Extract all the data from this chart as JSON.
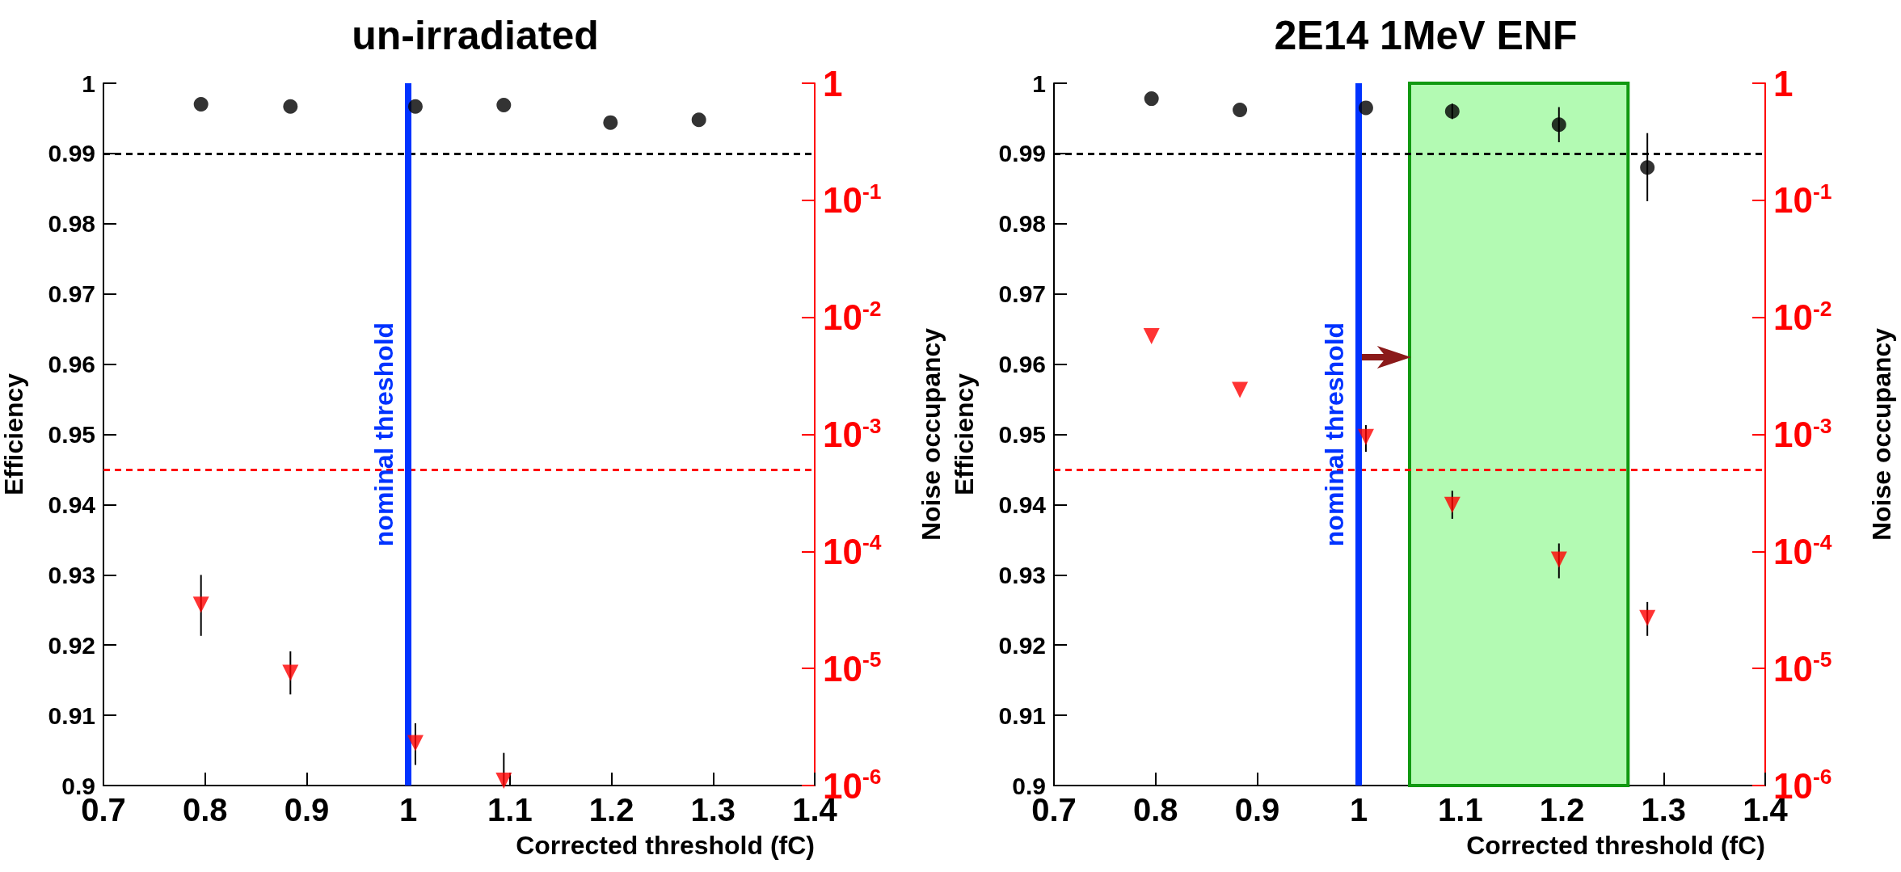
{
  "chart_data": [
    {
      "type": "scatter",
      "title": "un-irradiated",
      "xlabel": "Corrected threshold (fC)",
      "ylabel": "Efficiency",
      "y2label": "Noise occupancy",
      "xlim": [
        0.7,
        1.4
      ],
      "xticks": [
        0.7,
        0.8,
        0.9,
        1,
        1.1,
        1.2,
        1.3,
        1.4
      ],
      "ylim": [
        0.9,
        1
      ],
      "yticks": [
        0.9,
        0.91,
        0.92,
        0.93,
        0.94,
        0.95,
        0.96,
        0.97,
        0.98,
        0.99,
        1
      ],
      "y2lim": [
        1e-06,
        1
      ],
      "y2ticks": [
        {
          "value": 1e-06,
          "label": "10$^{-6}$"
        },
        {
          "value": 1e-05,
          "label": "10$^{-5}$"
        },
        {
          "value": 0.0001,
          "label": "10$^{-4}$"
        },
        {
          "value": 0.001,
          "label": "10$^{-3}$"
        },
        {
          "value": 0.01,
          "label": "10$^{-2}$"
        },
        {
          "value": 0.1,
          "label": "10$^{-1}$"
        },
        1
      ],
      "log": "y2",
      "grid": false,
      "series": [
        {
          "color": "#000000",
          "marker": "circle",
          "x": [
            0.796,
            0.884,
            1.007,
            1.094,
            1.199,
            1.286
          ],
          "values": [
            0.997,
            0.9967,
            0.9967,
            0.9969,
            0.9944,
            0.9948
          ]
        },
        {
          "color": "#ff0000",
          "marker": "triangle",
          "axis": "y2",
          "x": [
            0.796,
            0.884,
            1.007,
            1.094
          ],
          "values": [
            3.5e-05,
            9.2e-06,
            2.3e-06,
            1.1e-06
          ],
          "errors": [
            [
              1.9e-05,
              6.3e-05
            ],
            [
              6e-06,
              1.4e-05
            ],
            [
              1.5e-06,
              3.4e-06
            ],
            [
              1e-06,
              1.9e-06
            ]
          ]
        }
      ],
      "ref_lines": [
        {
          "axis": "y",
          "value": 0.99,
          "color": "#000000",
          "line_style": "dashed"
        },
        {
          "axis": "y2",
          "value": 0.0005,
          "color": "#ff0000",
          "line_style": "dashed"
        },
        {
          "axis": "x",
          "value": 1,
          "label": "nominal threshold",
          "color": "#0033ff",
          "line_style": "solid"
        }
      ]
    },
    {
      "type": "scatter",
      "title": "2E14 1MeV ENF",
      "xlabel": "Corrected threshold (fC)",
      "ylabel": "Efficiency",
      "y2label": "Noise occupancy",
      "xlim": [
        0.7,
        1.4
      ],
      "xticks": [
        0.7,
        0.8,
        0.9,
        1,
        1.1,
        1.2,
        1.3,
        1.4
      ],
      "ylim": [
        0.9,
        1
      ],
      "yticks": [
        0.9,
        0.91,
        0.92,
        0.93,
        0.94,
        0.95,
        0.96,
        0.97,
        0.98,
        0.99,
        1
      ],
      "y2lim": [
        1e-06,
        1
      ],
      "y2ticks": [
        {
          "value": 1e-06,
          "label": "10$^{-6}$"
        },
        {
          "value": 1e-05,
          "label": "10$^{-5}$"
        },
        {
          "value": 0.0001,
          "label": "10$^{-4}$"
        },
        {
          "value": 0.001,
          "label": "10$^{-3}$"
        },
        {
          "value": 0.01,
          "label": "10$^{-2}$"
        },
        {
          "value": 0.1,
          "label": "10$^{-1}$"
        },
        1
      ],
      "log": "y2",
      "grid": false,
      "series": [
        {
          "color": "#000000",
          "marker": "circle",
          "x": [
            0.796,
            0.883,
            1.007,
            1.092,
            1.197,
            1.284
          ],
          "values": [
            0.9978,
            0.9962,
            0.9965,
            0.996,
            0.9941,
            0.988
          ],
          "errors": [
            null,
            null,
            null,
            [
              0.9949,
              0.9971
            ],
            [
              0.9916,
              0.9966
            ],
            [
              0.9832,
              0.9929
            ]
          ]
        },
        {
          "color": "#ff0000",
          "marker": "triangle",
          "axis": "y2",
          "x": [
            0.796,
            0.883,
            1.007,
            1.092,
            1.197,
            1.284
          ],
          "values": [
            0.0069,
            0.0024,
            0.00095,
            0.00025,
            8.5e-05,
            2.7e-05
          ],
          "errors": [
            null,
            null,
            [
              0.00071,
              0.0012
            ],
            [
              0.00019,
              0.00033
            ],
            [
              5.9e-05,
              0.000117
            ],
            [
              1.9e-05,
              3.7e-05
            ]
          ]
        }
      ],
      "ref_lines": [
        {
          "axis": "y",
          "value": 0.99,
          "color": "#000000",
          "line_style": "dashed"
        },
        {
          "axis": "y2",
          "value": 0.0005,
          "color": "#ff0000",
          "line_style": "dashed"
        },
        {
          "axis": "x",
          "value": 1,
          "label": "nominal threshold",
          "color": "#0033ff",
          "line_style": "solid"
        }
      ],
      "bands": [
        {
          "axis": "x",
          "from": 1.05,
          "to": 1.265,
          "color": "#b3fab3"
        }
      ]
    }
  ]
}
